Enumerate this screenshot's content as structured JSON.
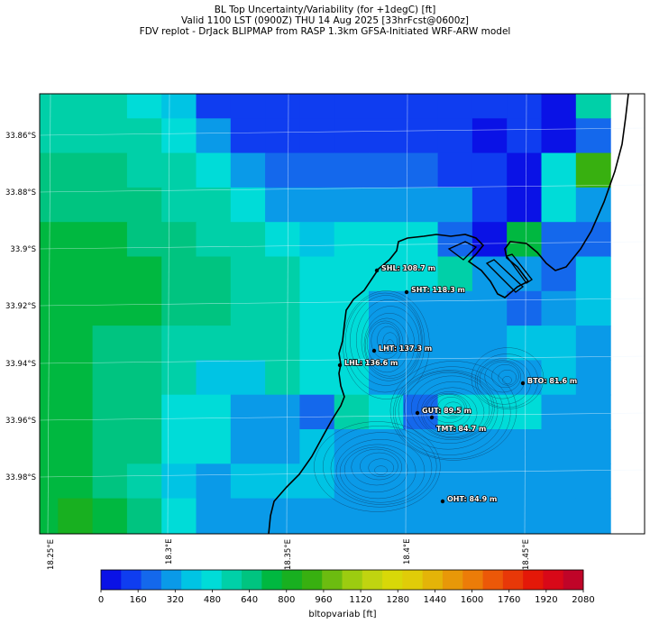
{
  "header": {
    "line1": "BL Top Uncertainty/Variability (for +1degC) [ft]",
    "line2": "Valid 1100 LST (0900Z) THU 14 Aug 2025 [33hrFcst@0600z]",
    "line3": "FDV replot - DrJack BLIPMAP from RASP 1.3km GFSA-Initiated WRF-ARW model"
  },
  "axes": {
    "lat_labels": [
      "33.86°S",
      "33.88°S",
      "33.9°S",
      "33.92°S",
      "33.94°S",
      "33.96°S",
      "33.98°S"
    ],
    "lon_labels": [
      "18.25°E",
      "18.3°E",
      "18.35°E",
      "18.4°E",
      "18.45°E"
    ]
  },
  "sites": [
    {
      "code": "SHL",
      "label": "SHL: 108.7 m"
    },
    {
      "code": "SHT",
      "label": "SHT: 118.3 m"
    },
    {
      "code": "LHT",
      "label": "LHT: 137.3 m"
    },
    {
      "code": "LHL",
      "label": "LHL: 136.6 m"
    },
    {
      "code": "BTO",
      "label": "BTO: 81.6 m"
    },
    {
      "code": "GUT",
      "label": "GUT: 89.5 m"
    },
    {
      "code": "TMT",
      "label": "TMT: 84.7 m"
    },
    {
      "code": "OHT",
      "label": "OHT: 84.9 m"
    }
  ],
  "colorbar": {
    "label": "bltopvariab [ft]",
    "ticks": [
      "0",
      "160",
      "320",
      "480",
      "640",
      "800",
      "960",
      "1120",
      "1280",
      "1440",
      "1600",
      "1760",
      "1920",
      "2080"
    ],
    "colors": [
      "#0a12e6",
      "#0f3df0",
      "#1468ec",
      "#0a9ae8",
      "#00c4e4",
      "#00dcd8",
      "#00d0a8",
      "#00c480",
      "#00b840",
      "#18b020",
      "#38b010",
      "#6cbc10",
      "#9ccc10",
      "#c0d410",
      "#d8d808",
      "#e0cc08",
      "#e4b408",
      "#e89808",
      "#ec7c08",
      "#ec5808",
      "#e83808",
      "#e41808",
      "#d80818",
      "#c00428"
    ]
  },
  "map": {
    "grid_colors": [
      [
        "#00d0a8",
        "#00d0a8",
        "#00d0a8",
        "#00dcd8",
        "#00c4e4",
        "#0f3df0",
        "#0f3df0",
        "#0f3df0",
        "#0f3df0",
        "#0f3df0",
        "#0f3df0",
        "#0f3df0",
        "#0f3df0",
        "#0f3df0",
        "#0f3df0",
        "#0a12e6",
        "#00d0a8"
      ],
      [
        "#00d0a8",
        "#00d0a8",
        "#00d0a8",
        "#00d0a8",
        "#00dcd8",
        "#0a9ae8",
        "#0f3df0",
        "#0f3df0",
        "#0f3df0",
        "#0f3df0",
        "#0f3df0",
        "#0f3df0",
        "#0f3df0",
        "#0a12e6",
        "#0f3df0",
        "#0a12e6",
        "#1468ec"
      ],
      [
        "#00c480",
        "#00c480",
        "#00c480",
        "#00d0a8",
        "#00d0a8",
        "#00dcd8",
        "#0a9ae8",
        "#1468ec",
        "#1468ec",
        "#1468ec",
        "#1468ec",
        "#1468ec",
        "#0f3df0",
        "#0f3df0",
        "#0a12e6",
        "#00dcd8",
        "#38b010"
      ],
      [
        "#00c480",
        "#00c480",
        "#00c480",
        "#00c480",
        "#00d0a8",
        "#00d0a8",
        "#00dcd8",
        "#0a9ae8",
        "#0a9ae8",
        "#0a9ae8",
        "#0a9ae8",
        "#0a9ae8",
        "#0a9ae8",
        "#0f3df0",
        "#0a12e6",
        "#00dcd8",
        "#0a9ae8"
      ],
      [
        "#00b840",
        "#00b840",
        "#00b840",
        "#00c480",
        "#00c480",
        "#00d0a8",
        "#00d0a8",
        "#00dcd8",
        "#00c4e4",
        "#00dcd8",
        "#00dcd8",
        "#00dcd8",
        "#1468ec",
        "#0a12e6",
        "#00b840",
        "#1468ec",
        "#1468ec"
      ],
      [
        "#00b840",
        "#00b840",
        "#00b840",
        "#00b840",
        "#00c480",
        "#00c480",
        "#00d0a8",
        "#00d0a8",
        "#00dcd8",
        "#00dcd8",
        "#00dcd8",
        "#00dcd8",
        "#00d0a8",
        "#0a9ae8",
        "#0a9ae8",
        "#1468ec",
        "#00c4e4"
      ],
      [
        "#00b840",
        "#00b840",
        "#00b840",
        "#00b840",
        "#00c480",
        "#00c480",
        "#00d0a8",
        "#00d0a8",
        "#00dcd8",
        "#00dcd8",
        "#0a9ae8",
        "#0a9ae8",
        "#0a9ae8",
        "#0a9ae8",
        "#1468ec",
        "#0a9ae8",
        "#00c4e4"
      ],
      [
        "#00b840",
        "#00b840",
        "#00c480",
        "#00c480",
        "#00d0a8",
        "#00d0a8",
        "#00d0a8",
        "#00d0a8",
        "#00dcd8",
        "#00dcd8",
        "#0a9ae8",
        "#0a9ae8",
        "#0a9ae8",
        "#0a9ae8",
        "#00c4e4",
        "#00c4e4",
        "#0a9ae8"
      ],
      [
        "#00b840",
        "#00b840",
        "#00c480",
        "#00c480",
        "#00d0a8",
        "#00c4e4",
        "#00c4e4",
        "#00d0a8",
        "#00dcd8",
        "#00dcd8",
        "#0a9ae8",
        "#0a9ae8",
        "#0a9ae8",
        "#0a9ae8",
        "#0a9ae8",
        "#00c4e4",
        "#0a9ae8"
      ],
      [
        "#00b840",
        "#00b840",
        "#00c480",
        "#00c480",
        "#00dcd8",
        "#00dcd8",
        "#0a9ae8",
        "#0a9ae8",
        "#1468ec",
        "#00d0a8",
        "#00dcd8",
        "#1468ec",
        "#00dcd8",
        "#00dcd8",
        "#00dcd8",
        "#0a9ae8",
        "#0a9ae8"
      ],
      [
        "#00b840",
        "#00b840",
        "#00c480",
        "#00c480",
        "#00dcd8",
        "#00dcd8",
        "#0a9ae8",
        "#0a9ae8",
        "#00c4e4",
        "#0a9ae8",
        "#0a9ae8",
        "#0a9ae8",
        "#0a9ae8",
        "#0a9ae8",
        "#0a9ae8",
        "#0a9ae8",
        "#0a9ae8"
      ],
      [
        "#00b840",
        "#00b840",
        "#00c480",
        "#00d0a8",
        "#00c4e4",
        "#0a9ae8",
        "#00c4e4",
        "#00c4e4",
        "#00c4e4",
        "#0a9ae8",
        "#0a9ae8",
        "#0a9ae8",
        "#0a9ae8",
        "#0a9ae8",
        "#0a9ae8",
        "#0a9ae8",
        "#0a9ae8"
      ],
      [
        "#00b840",
        "#18b020",
        "#00b840",
        "#00c480",
        "#00dcd8",
        "#0a9ae8",
        "#0a9ae8",
        "#0a9ae8",
        "#0a9ae8",
        "#0a9ae8",
        "#0a9ae8",
        "#0a9ae8",
        "#0a9ae8",
        "#0a9ae8",
        "#0a9ae8",
        "#0a9ae8",
        "#0a9ae8"
      ]
    ]
  }
}
